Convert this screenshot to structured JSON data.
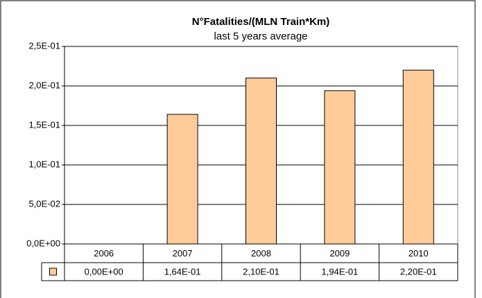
{
  "chart_data": {
    "type": "bar",
    "title": "N°Fatalities/(MLN Train*Km)",
    "subtitle": "last 5 years average",
    "categories": [
      "2006",
      "2007",
      "2008",
      "2009",
      "2010"
    ],
    "values": [
      0,
      0.164,
      0.21,
      0.194,
      0.22
    ],
    "value_labels": [
      "0,00E+00",
      "1,64E-01",
      "2,10E-01",
      "1,94E-01",
      "2,20E-01"
    ],
    "color": "#ffcc99",
    "ylim": [
      0,
      0.25
    ],
    "yticks": [
      {
        "value": 0,
        "label": "0,0E+00"
      },
      {
        "value": 0.05,
        "label": "5,0E-02"
      },
      {
        "value": 0.1,
        "label": "1,0E-01"
      },
      {
        "value": 0.15,
        "label": "1,5E-01"
      },
      {
        "value": 0.2,
        "label": "2,0E-01"
      },
      {
        "value": 0.25,
        "label": "2,5E-01"
      }
    ],
    "grid": true
  }
}
